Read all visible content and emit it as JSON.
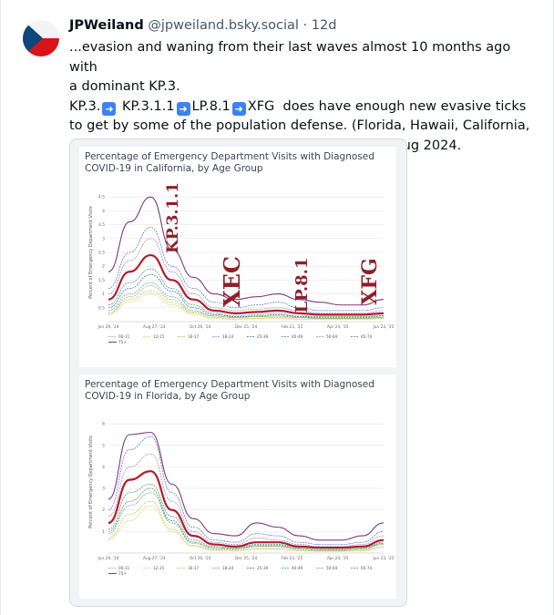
{
  "post": {
    "display_name": "JPWeiland",
    "handle": "@jpweiland.bsky.social",
    "separator": "·",
    "time": "12d",
    "line1": "...evasion and waning from their last waves almost 10 months ago with",
    "line2": "a dominant KP.3.",
    "chain": [
      "KP.3.",
      "KP.3.1.1",
      "LP.8.1",
      "XFG"
    ],
    "chain_tail": "  does have enough new evasive ticks",
    "line4": "to get by some of the population defense. (Florida, Hawaii, California,",
    "line5": "and their surrounding states has no waces since Aug 2024.",
    "arrow_icon": "right-arrow-emoji"
  },
  "colors": {
    "series_all": "#b01e2d",
    "series_75": "#7a3b7e",
    "annotation": "#8f1f2a"
  },
  "chart_data": [
    {
      "type": "line",
      "title": "Percentage of Emergency Department Visits with Diagnosed COVID-19 in California, by Age Group",
      "ylabel": "Percent of Emergency Department Visits",
      "y_ticks": [
        "4.5",
        "4",
        "3.5",
        "3",
        "2.5",
        "2",
        "1.5",
        "1",
        "0.5"
      ],
      "ylim": [
        0,
        5
      ],
      "x_tick_labels": [
        "Jun 29, '24",
        "Aug 27, '24",
        "Oct 26, '24",
        "Dec 25, '24",
        "Feb 23, '25",
        "Apr 24, '25",
        "Jun 23, '25"
      ],
      "legend": [
        "00-11",
        "12-15",
        "16-17",
        "18-24",
        "25-39",
        "40-49",
        "50-64",
        "65-74",
        "75+"
      ],
      "annotations": [
        "KP.3.1.1",
        "XEC",
        "LP.8.1",
        "XFG"
      ],
      "x": [
        0,
        4,
        8,
        12,
        16,
        20,
        24,
        28,
        32,
        36,
        40,
        44,
        48,
        52
      ],
      "series": [
        {
          "name": "75+",
          "values": [
            1.8,
            3.6,
            4.5,
            2.6,
            1.6,
            1.0,
            0.8,
            0.9,
            1.0,
            0.8,
            0.7,
            0.6,
            0.6,
            0.8
          ]
        },
        {
          "name": "65-74",
          "values": [
            1.2,
            2.5,
            3.4,
            2.0,
            1.2,
            0.7,
            0.5,
            0.6,
            0.7,
            0.5,
            0.4,
            0.4,
            0.4,
            0.5
          ]
        },
        {
          "name": "50-64",
          "values": [
            1.0,
            2.2,
            3.0,
            1.8,
            1.0,
            0.5,
            0.4,
            0.45,
            0.5,
            0.4,
            0.3,
            0.3,
            0.3,
            0.4
          ]
        },
        {
          "name": "all",
          "values": [
            0.8,
            1.8,
            2.4,
            1.5,
            0.8,
            0.4,
            0.3,
            0.35,
            0.4,
            0.3,
            0.25,
            0.25,
            0.25,
            0.3
          ]
        },
        {
          "name": "40-49",
          "values": [
            0.6,
            1.4,
            1.9,
            1.2,
            0.6,
            0.3,
            0.2,
            0.25,
            0.3,
            0.2,
            0.18,
            0.18,
            0.18,
            0.22
          ]
        },
        {
          "name": "25-39",
          "values": [
            0.5,
            1.2,
            1.7,
            1.1,
            0.5,
            0.25,
            0.18,
            0.2,
            0.25,
            0.18,
            0.15,
            0.15,
            0.15,
            0.2
          ]
        },
        {
          "name": "18-24",
          "values": [
            0.4,
            1.0,
            1.4,
            0.9,
            0.4,
            0.2,
            0.15,
            0.18,
            0.2,
            0.15,
            0.12,
            0.12,
            0.12,
            0.15
          ]
        },
        {
          "name": "16-17",
          "values": [
            0.3,
            0.8,
            1.1,
            0.7,
            0.3,
            0.15,
            0.1,
            0.12,
            0.15,
            0.1,
            0.1,
            0.1,
            0.1,
            0.12
          ]
        },
        {
          "name": "12-15",
          "values": [
            0.25,
            0.7,
            1.0,
            0.6,
            0.25,
            0.12,
            0.08,
            0.1,
            0.12,
            0.08,
            0.08,
            0.08,
            0.08,
            0.1
          ]
        },
        {
          "name": "00-11",
          "values": [
            0.3,
            0.9,
            1.3,
            0.8,
            0.35,
            0.2,
            0.15,
            0.18,
            0.2,
            0.15,
            0.12,
            0.12,
            0.12,
            0.15
          ]
        }
      ]
    },
    {
      "type": "line",
      "title": "Percentage of Emergency Department Visits with Diagnosed COVID-19 in Florida, by Age Group",
      "ylabel": "Percent of Emergency Department Visits",
      "y_ticks": [
        "6",
        "5",
        "4",
        "3",
        "2",
        "1"
      ],
      "ylim": [
        0,
        6.6
      ],
      "x_tick_labels": [
        "Jun 29, '24",
        "Aug 27, '24",
        "Oct 26, '24",
        "Dec 25, '24",
        "Feb 23, '25",
        "Apr 24, '25",
        "Jun 23, '25"
      ],
      "legend": [
        "00-11",
        "12-15",
        "16-17",
        "18-24",
        "25-39",
        "40-49",
        "50-64",
        "65-74",
        "75+"
      ],
      "x": [
        0,
        4,
        8,
        12,
        16,
        20,
        24,
        28,
        32,
        36,
        40,
        44,
        48,
        52
      ],
      "series": [
        {
          "name": "75+",
          "values": [
            2.5,
            5.5,
            5.6,
            3.2,
            1.6,
            0.9,
            0.8,
            1.4,
            1.2,
            0.8,
            0.6,
            0.6,
            0.8,
            1.4
          ]
        },
        {
          "name": "65-74",
          "values": [
            2.0,
            4.8,
            5.4,
            2.8,
            1.2,
            0.6,
            0.5,
            0.9,
            0.8,
            0.5,
            0.4,
            0.4,
            0.5,
            1.0
          ]
        },
        {
          "name": "50-64",
          "values": [
            1.7,
            4.0,
            4.6,
            2.4,
            1.0,
            0.5,
            0.4,
            0.7,
            0.6,
            0.4,
            0.3,
            0.3,
            0.4,
            0.8
          ]
        },
        {
          "name": "all",
          "values": [
            1.4,
            3.4,
            3.8,
            2.0,
            0.8,
            0.4,
            0.3,
            0.5,
            0.5,
            0.3,
            0.25,
            0.25,
            0.3,
            0.6
          ]
        },
        {
          "name": "40-49",
          "values": [
            1.1,
            2.8,
            3.2,
            1.7,
            0.6,
            0.3,
            0.25,
            0.4,
            0.4,
            0.25,
            0.2,
            0.2,
            0.25,
            0.5
          ]
        },
        {
          "name": "25-39",
          "values": [
            1.0,
            2.4,
            3.0,
            1.5,
            0.5,
            0.25,
            0.2,
            0.35,
            0.35,
            0.2,
            0.15,
            0.15,
            0.2,
            0.45
          ]
        },
        {
          "name": "18-24",
          "values": [
            0.9,
            2.2,
            2.8,
            1.4,
            0.45,
            0.2,
            0.18,
            0.3,
            0.3,
            0.18,
            0.12,
            0.12,
            0.18,
            0.4
          ]
        },
        {
          "name": "16-17",
          "values": [
            0.7,
            1.8,
            2.4,
            1.1,
            0.35,
            0.15,
            0.12,
            0.2,
            0.2,
            0.12,
            0.1,
            0.1,
            0.12,
            0.3
          ]
        },
        {
          "name": "12-15",
          "values": [
            0.6,
            1.5,
            2.2,
            1.0,
            0.3,
            0.12,
            0.1,
            0.18,
            0.18,
            0.1,
            0.08,
            0.08,
            0.1,
            0.25
          ]
        },
        {
          "name": "00-11",
          "values": [
            1.0,
            2.4,
            3.0,
            1.4,
            0.5,
            0.25,
            0.2,
            0.3,
            0.3,
            0.2,
            0.15,
            0.15,
            0.2,
            0.4
          ]
        }
      ]
    }
  ]
}
